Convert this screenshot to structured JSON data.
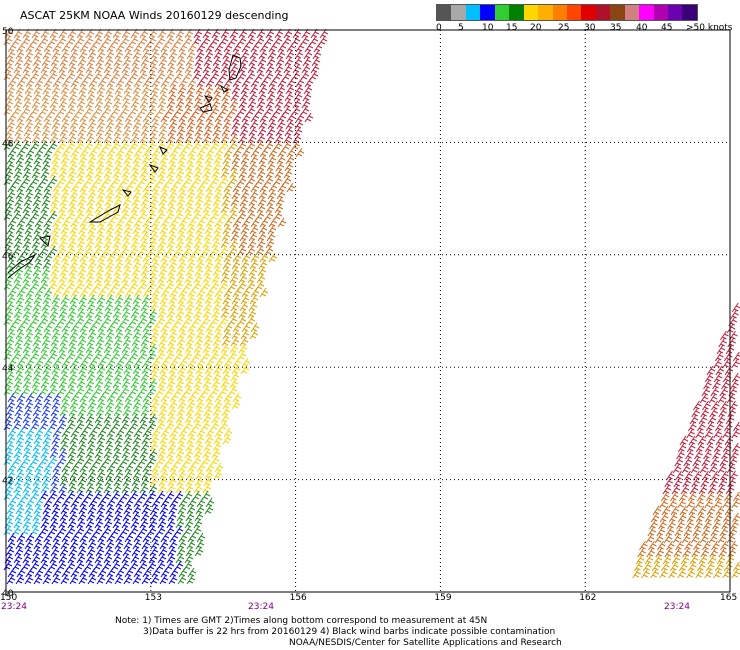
{
  "title": "ASCAT 25KM NOAA Winds 20160129 descending",
  "legend": {
    "colors": [
      "#555555",
      "#a9a9a9",
      "#00bfff",
      "#0000ff",
      "#32cd32",
      "#008000",
      "#ffd700",
      "#ffb000",
      "#ff7f00",
      "#ff4500",
      "#e00000",
      "#b0102a",
      "#8b4513",
      "#d08080",
      "#ff00ff",
      "#b000b0",
      "#6a00b0",
      "#3a007a"
    ],
    "labels": [
      "0",
      "5",
      "10",
      "15",
      "20",
      "25",
      "30",
      "35",
      "40",
      "45",
      ">50 knots"
    ]
  },
  "axes": {
    "lon_ticks": [
      "150",
      "153",
      "156",
      "159",
      "162",
      "165"
    ],
    "lat_ticks": [
      "50",
      "48",
      "46",
      "44",
      "42",
      "40"
    ],
    "times": [
      "23:24",
      "23:24",
      "23:24"
    ]
  },
  "notes": {
    "line1": "Note: 1) Times are GMT 2)Times along bottom correspond to measurement at 45N",
    "line2": "3)Data buffer is 22 hrs from 20160129 4) Black wind barbs indicate possible contamination",
    "line3": "NOAA/NESDIS/Center for Satellite Applications and Research"
  }
}
